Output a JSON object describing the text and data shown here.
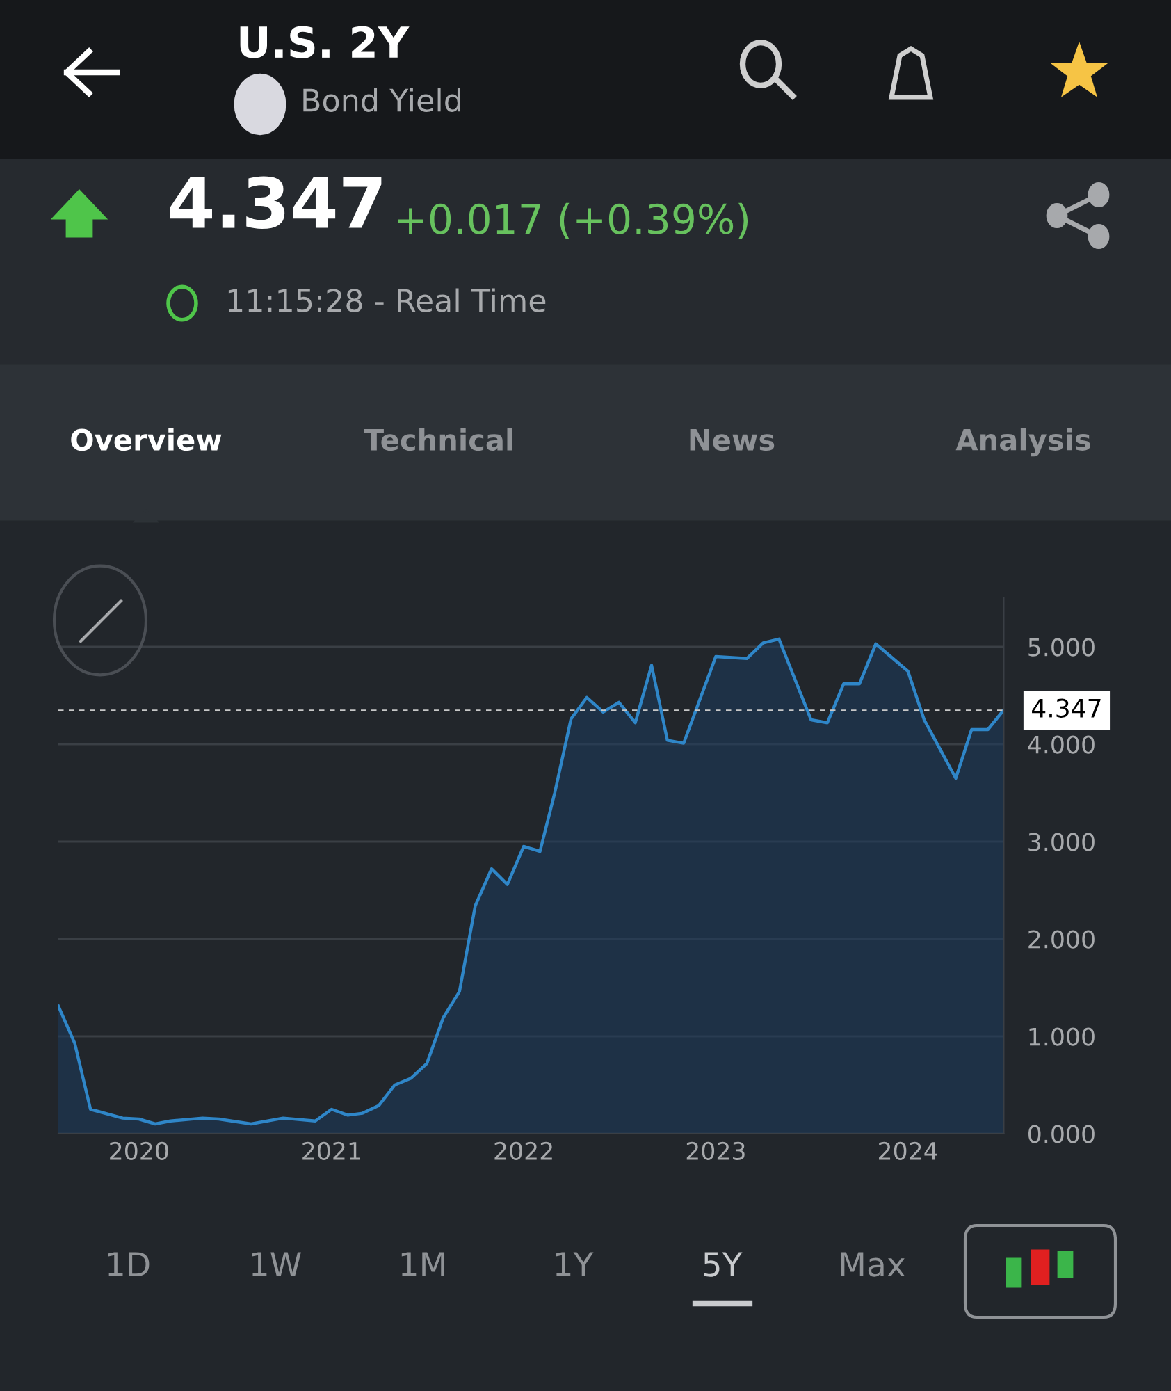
{
  "chart_data": {
    "type": "area",
    "title": "U.S. 2Y",
    "subtitle": "Bond Yield",
    "x": [
      "2019-08",
      "2019-09",
      "2019-10",
      "2019-12",
      "2020-01",
      "2020-02",
      "2020-03",
      "2020-05",
      "2020-06",
      "2020-08",
      "2020-10",
      "2020-12",
      "2021-01",
      "2021-02",
      "2021-03",
      "2021-04",
      "2021-05",
      "2021-06",
      "2021-07",
      "2021-08",
      "2021-09",
      "2021-10",
      "2021-11",
      "2021-12",
      "2022-01",
      "2022-02",
      "2022-03",
      "2022-04",
      "2022-05",
      "2022-06",
      "2022-07",
      "2022-08",
      "2022-09",
      "2022-10",
      "2022-11",
      "2023-01",
      "2023-03",
      "2023-04",
      "2023-05",
      "2023-07",
      "2023-08",
      "2023-09",
      "2023-10",
      "2023-11",
      "2024-01",
      "2024-02",
      "2024-03",
      "2024-04",
      "2024-05",
      "2024-06",
      "2024-07"
    ],
    "series": [
      {
        "color": "#2f86c8",
        "values": [
          1.31,
          0.93,
          0.25,
          0.16,
          0.15,
          0.1,
          0.13,
          0.16,
          0.15,
          0.1,
          0.16,
          0.13,
          0.25,
          0.19,
          0.21,
          0.29,
          0.5,
          0.57,
          0.72,
          1.19,
          1.46,
          2.34,
          2.72,
          2.56,
          2.95,
          2.9,
          3.5,
          4.26,
          4.48,
          4.33,
          4.43,
          4.22,
          4.81,
          4.04,
          4.01,
          4.9,
          4.88,
          5.04,
          5.08,
          4.25,
          4.22,
          4.62,
          4.62,
          5.03,
          4.75,
          4.25,
          3.96,
          3.65,
          4.15,
          4.15,
          4.35
        ]
      }
    ],
    "xlim": [
      "2019-08",
      "2024-07"
    ],
    "xticks": [
      {
        "value": "2020",
        "label": "2020"
      },
      {
        "value": "2021",
        "label": "2021"
      },
      {
        "value": "2022",
        "label": "2022"
      },
      {
        "value": "2023",
        "label": "2023"
      },
      {
        "value": "2024",
        "label": "2024"
      }
    ],
    "ylim": [
      0,
      5.5
    ],
    "yticks": [
      {
        "value": 0,
        "label": "0.000"
      },
      {
        "value": 1,
        "label": "1.000"
      },
      {
        "value": 2,
        "label": "2.000"
      },
      {
        "value": 3,
        "label": "3.000"
      },
      {
        "value": 4,
        "label": "4.000"
      },
      {
        "value": 5,
        "label": "5.000"
      }
    ],
    "grid": "y",
    "ref_lines": [
      {
        "axis": "y",
        "value": 4.347,
        "label": "4.347",
        "color": "#c8c8c8",
        "line_style": "dashed"
      }
    ],
    "annotations": [
      "4.347",
      "+0.017 (+0.39%)",
      "11:15:28 - Real Time",
      "Overview",
      "Technical",
      "News",
      "Analysis",
      "1D",
      "1W",
      "1M",
      "1Y",
      "5Y",
      "Max"
    ]
  }
}
